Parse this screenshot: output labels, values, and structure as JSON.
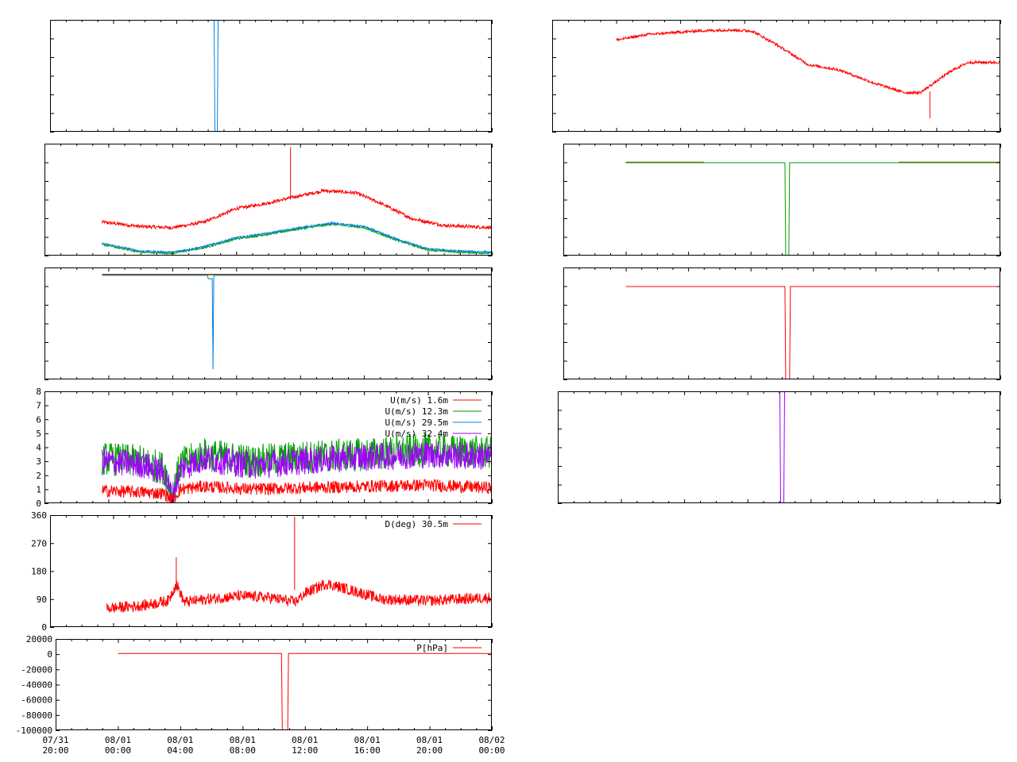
{
  "time_axis": {
    "start": "07/31 20:00",
    "end": "08/02 00:00",
    "tick_labels": [
      {
        "date": "07/31",
        "time": "20:00",
        "hours": 0
      },
      {
        "date": "08/01",
        "time": "00:00",
        "hours": 4
      },
      {
        "date": "08/01",
        "time": "04:00",
        "hours": 8
      },
      {
        "date": "08/01",
        "time": "08:00",
        "hours": 12
      },
      {
        "date": "08/01",
        "time": "12:00",
        "hours": 16
      },
      {
        "date": "08/01",
        "time": "16:00",
        "hours": 20
      },
      {
        "date": "08/01",
        "time": "20:00",
        "hours": 24
      },
      {
        "date": "08/02",
        "time": "00:00",
        "hours": 28
      }
    ]
  },
  "colors": {
    "red": "#ff0000",
    "green": "#00a000",
    "blue": "#0080e0",
    "magenta": "#a000ff",
    "olive": "#6a6a00"
  },
  "chart_data": [
    {
      "id": "left-1",
      "type": "line",
      "note_units": "unlabeled",
      "series": [
        {
          "color": "blue",
          "points": [
            [
              10.4,
              1
            ],
            [
              10.45,
              0
            ],
            [
              10.6,
              0
            ],
            [
              10.65,
              1
            ]
          ]
        }
      ],
      "ylim": [
        0,
        1
      ]
    },
    {
      "id": "left-2",
      "type": "line",
      "ylim": [
        0,
        1
      ],
      "series": [
        {
          "color": "red",
          "noise": 0.015,
          "points": [
            [
              3.6,
              0.3
            ],
            [
              6,
              0.26
            ],
            [
              8,
              0.25
            ],
            [
              10,
              0.3
            ],
            [
              12,
              0.42
            ],
            [
              14,
              0.47
            ],
            [
              15.5,
              0.52
            ],
            [
              17.5,
              0.58
            ],
            [
              19.5,
              0.56
            ],
            [
              21,
              0.47
            ],
            [
              23,
              0.33
            ],
            [
              25,
              0.27
            ],
            [
              28,
              0.25
            ]
          ]
        },
        {
          "color": "green",
          "noise": 0.008,
          "points": [
            [
              3.6,
              0.1
            ],
            [
              6,
              0.03
            ],
            [
              8,
              0.02
            ],
            [
              10,
              0.07
            ],
            [
              12,
              0.15
            ],
            [
              14,
              0.19
            ],
            [
              16,
              0.24
            ],
            [
              18,
              0.28
            ],
            [
              20,
              0.25
            ],
            [
              22,
              0.14
            ],
            [
              24,
              0.05
            ],
            [
              26,
              0.03
            ],
            [
              28,
              0.02
            ]
          ]
        },
        {
          "color": "blue",
          "noise": 0.008,
          "points": [
            [
              3.6,
              0.11
            ],
            [
              6,
              0.04
            ],
            [
              8,
              0.03
            ],
            [
              10,
              0.08
            ],
            [
              12,
              0.16
            ],
            [
              14,
              0.2
            ],
            [
              16,
              0.25
            ],
            [
              18,
              0.29
            ],
            [
              20,
              0.26
            ],
            [
              22,
              0.15
            ],
            [
              24,
              0.06
            ],
            [
              26,
              0.04
            ],
            [
              28,
              0.03
            ]
          ]
        }
      ],
      "spikes": [
        {
          "color": "red",
          "x": 15.4,
          "from": 0.5,
          "to": 0.97
        }
      ]
    },
    {
      "id": "left-3",
      "type": "line",
      "ylim": [
        0,
        1
      ],
      "series": [
        {
          "color": "red",
          "points": [
            [
              3.6,
              0.94
            ],
            [
              28,
              0.94
            ]
          ]
        },
        {
          "color": "green",
          "points": [
            [
              3.6,
              0.935
            ],
            [
              28,
              0.935
            ]
          ]
        },
        {
          "color": "blue",
          "points": [
            [
              3.6,
              0.93
            ],
            [
              10.2,
              0.93
            ],
            [
              10.25,
              0.9
            ],
            [
              10.5,
              0.9
            ],
            [
              10.55,
              0.09
            ],
            [
              10.6,
              0.93
            ],
            [
              28,
              0.93
            ]
          ]
        }
      ],
      "spikes": []
    },
    {
      "id": "left-4",
      "type": "line",
      "ylim": [
        0,
        8
      ],
      "yticks": [
        0,
        1,
        2,
        3,
        4,
        5,
        6,
        7,
        8
      ],
      "legend": [
        "U(m/s)  1.6m",
        "U(m/s) 12.3m",
        "U(m/s) 29.5m",
        "U(m/s) 32.4m"
      ],
      "legend_colors": [
        "red",
        "green",
        "blue",
        "magenta"
      ],
      "series": [
        {
          "color": "green",
          "noise": 1.2,
          "points": [
            [
              3.6,
              3.2
            ],
            [
              6,
              3
            ],
            [
              7.5,
              2.5
            ],
            [
              8,
              0.5
            ],
            [
              8.5,
              2.8
            ],
            [
              10,
              3.5
            ],
            [
              13,
              3
            ],
            [
              16,
              3.3
            ],
            [
              20,
              3.5
            ],
            [
              24,
              3.8
            ],
            [
              28,
              3.6
            ]
          ]
        },
        {
          "color": "magenta",
          "noise": 1.0,
          "points": [
            [
              3.6,
              3
            ],
            [
              6,
              2.8
            ],
            [
              7.5,
              2.2
            ],
            [
              8,
              0.4
            ],
            [
              8.5,
              2.5
            ],
            [
              10,
              3.2
            ],
            [
              13,
              2.7
            ],
            [
              16,
              3
            ],
            [
              20,
              3.3
            ],
            [
              24,
              3.5
            ],
            [
              28,
              3.3
            ]
          ]
        },
        {
          "color": "red",
          "noise": 0.45,
          "points": [
            [
              3.6,
              0.9
            ],
            [
              6,
              0.8
            ],
            [
              7.5,
              0.7
            ],
            [
              8,
              0.2
            ],
            [
              8.5,
              1
            ],
            [
              10,
              1.2
            ],
            [
              13,
              1
            ],
            [
              16,
              1.1
            ],
            [
              20,
              1.2
            ],
            [
              24,
              1.3
            ],
            [
              28,
              1.1
            ]
          ]
        }
      ],
      "spikes": []
    },
    {
      "id": "left-5",
      "type": "line",
      "ylim": [
        0,
        360
      ],
      "yticks": [
        0,
        90,
        180,
        270,
        360
      ],
      "legend": [
        "D(deg)  30.5m"
      ],
      "legend_colors": [
        "red"
      ],
      "series": [
        {
          "color": "red",
          "noise": 18,
          "points": [
            [
              3.6,
              60
            ],
            [
              6,
              70
            ],
            [
              7.5,
              85
            ],
            [
              8,
              140
            ],
            [
              8.5,
              80
            ],
            [
              10,
              90
            ],
            [
              12,
              100
            ],
            [
              14,
              95
            ],
            [
              15.5,
              80
            ],
            [
              16.2,
              110
            ],
            [
              17.5,
              140
            ],
            [
              19,
              120
            ],
            [
              21,
              90
            ],
            [
              24,
              85
            ],
            [
              28,
              95
            ]
          ]
        }
      ],
      "spikes": [
        {
          "color": "red",
          "x": 15.5,
          "from": 120,
          "to": 355
        },
        {
          "color": "red",
          "x": 8.0,
          "from": 120,
          "to": 225
        }
      ]
    },
    {
      "id": "left-6",
      "type": "line",
      "ylim": [
        -100000,
        20000
      ],
      "yticks": [
        -100000,
        -80000,
        -60000,
        -40000,
        -20000,
        0,
        20000
      ],
      "legend": [
        "P[hPa]"
      ],
      "legend_colors": [
        "red"
      ],
      "series": [
        {
          "color": "red",
          "points": [
            [
              4.0,
              1000
            ],
            [
              14.5,
              1000
            ],
            [
              14.55,
              -100000
            ],
            [
              14.9,
              -100000
            ],
            [
              14.95,
              1000
            ],
            [
              28,
              1000
            ]
          ]
        }
      ],
      "spikes": []
    },
    {
      "id": "right-1",
      "type": "line",
      "ylim": [
        0,
        1
      ],
      "series": [
        {
          "color": "red",
          "noise": 0.012,
          "points": [
            [
              4,
              0.82
            ],
            [
              6,
              0.87
            ],
            [
              9,
              0.9
            ],
            [
              11,
              0.91
            ],
            [
              12.5,
              0.9
            ],
            [
              14,
              0.78
            ],
            [
              16,
              0.6
            ],
            [
              18,
              0.55
            ],
            [
              20,
              0.44
            ],
            [
              22,
              0.35
            ],
            [
              23,
              0.35
            ],
            [
              24,
              0.45
            ],
            [
              25,
              0.55
            ],
            [
              26,
              0.62
            ],
            [
              28,
              0.62
            ]
          ]
        }
      ],
      "spikes": [
        {
          "color": "red",
          "x": 23.6,
          "from": 0.36,
          "to": 0.12
        }
      ]
    },
    {
      "id": "right-2",
      "type": "line",
      "ylim": [
        0,
        1
      ],
      "series": [
        {
          "color": "green",
          "points": [
            [
              4,
              0.83
            ],
            [
              14.2,
              0.83
            ],
            [
              14.25,
              0
            ],
            [
              14.45,
              0
            ],
            [
              14.5,
              0.83
            ],
            [
              28,
              0.83
            ]
          ]
        },
        {
          "color": "olive",
          "points": [
            [
              4,
              0.835
            ],
            [
              9,
              0.835
            ]
          ]
        },
        {
          "color": "olive",
          "points": [
            [
              21.5,
              0.835
            ],
            [
              28,
              0.835
            ]
          ]
        }
      ],
      "spikes": []
    },
    {
      "id": "right-3",
      "type": "line",
      "ylim": [
        0,
        1
      ],
      "series": [
        {
          "color": "red",
          "points": [
            [
              4,
              0.83
            ],
            [
              14.2,
              0.83
            ],
            [
              14.25,
              0
            ],
            [
              14.5,
              0
            ],
            [
              14.55,
              0.83
            ],
            [
              28,
              0.83
            ]
          ]
        }
      ],
      "spikes": []
    },
    {
      "id": "right-4",
      "type": "line",
      "ylim": [
        0,
        1
      ],
      "series": [
        {
          "color": "magenta",
          "points": [
            [
              14.05,
              1
            ],
            [
              14.1,
              0
            ],
            [
              14.3,
              0
            ],
            [
              14.35,
              1
            ]
          ]
        }
      ],
      "spikes": []
    }
  ]
}
